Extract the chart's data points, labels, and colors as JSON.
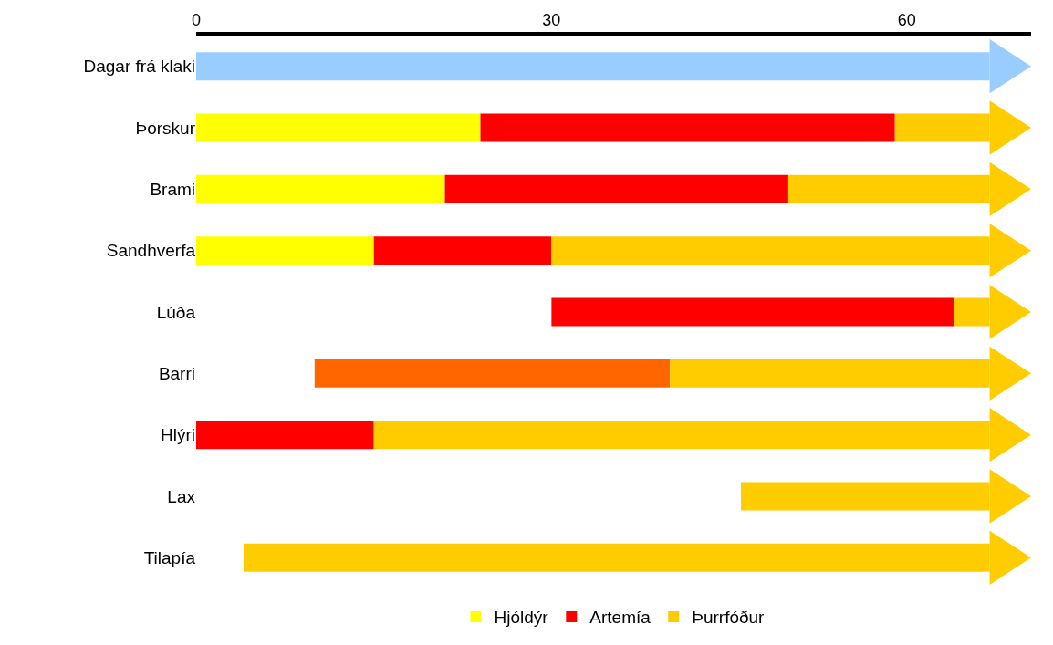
{
  "chart_data": {
    "type": "bar",
    "orientation": "horizontal",
    "categories": [
      "Dagar frá klaki",
      "Þorskur",
      "Brami",
      "Sandhverfa",
      "Lúða",
      "Barri",
      "Hlýri",
      "Lax",
      "Tilapía"
    ],
    "series": [
      {
        "color": "#99ccff",
        "values": [
          67,
          null,
          null,
          null,
          null,
          null,
          null,
          null,
          null
        ],
        "base": [
          0,
          null,
          null,
          null,
          null,
          null,
          null,
          null,
          null
        ]
      },
      {
        "name": "Hjóldýr",
        "color": "#ffff00",
        "values": [
          null,
          24,
          21,
          15,
          null,
          null,
          null,
          null,
          null
        ],
        "base": [
          null,
          0,
          0,
          0,
          null,
          null,
          null,
          null,
          null
        ]
      },
      {
        "name": "Artemía",
        "color": "#ff0000",
        "values": [
          null,
          35,
          29,
          15,
          34,
          null,
          15,
          null,
          null
        ],
        "base": [
          null,
          24,
          21,
          15,
          30,
          null,
          0,
          null,
          null
        ]
      },
      {
        "color": "#ff6600",
        "values": [
          null,
          null,
          null,
          null,
          null,
          30,
          null,
          null,
          null
        ],
        "base": [
          null,
          null,
          null,
          null,
          null,
          10,
          null,
          null,
          null
        ]
      },
      {
        "name": "Þurrfóður",
        "color": "#ffcc00",
        "values": [
          null,
          8,
          17,
          37,
          3,
          27,
          52,
          21,
          63
        ],
        "base": [
          null,
          59,
          50,
          30,
          64,
          40,
          15,
          46,
          4
        ]
      }
    ],
    "xlim": [
      0,
      70.5
    ],
    "xticks": [
      0,
      30,
      60
    ],
    "legend": "bottom"
  }
}
